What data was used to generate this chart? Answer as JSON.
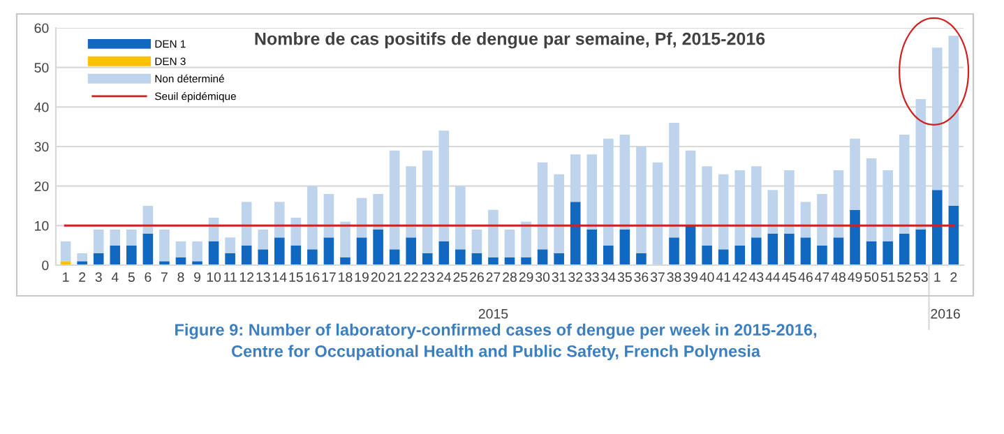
{
  "chart_data": {
    "type": "bar",
    "stacked": true,
    "title": "Nombre de cas positifs de dengue par semaine, Pf, 2015-2016",
    "categories": [
      "1",
      "2",
      "3",
      "4",
      "5",
      "6",
      "7",
      "8",
      "9",
      "10",
      "11",
      "12",
      "13",
      "14",
      "15",
      "16",
      "17",
      "18",
      "19",
      "20",
      "21",
      "22",
      "23",
      "24",
      "25",
      "26",
      "27",
      "28",
      "29",
      "30",
      "31",
      "32",
      "33",
      "34",
      "35",
      "36",
      "37",
      "38",
      "39",
      "40",
      "41",
      "42",
      "43",
      "44",
      "45",
      "46",
      "47",
      "48",
      "49",
      "50",
      "51",
      "52",
      "53",
      "1",
      "2"
    ],
    "series": [
      {
        "name": "DEN 1",
        "color": "#1068c0",
        "values": [
          0,
          1,
          3,
          5,
          5,
          8,
          1,
          2,
          1,
          6,
          3,
          5,
          4,
          7,
          5,
          4,
          7,
          2,
          7,
          9,
          4,
          7,
          3,
          6,
          4,
          3,
          2,
          2,
          2,
          4,
          3,
          16,
          9,
          5,
          9,
          3,
          0,
          7,
          10,
          5,
          4,
          5,
          7,
          8,
          8,
          7,
          5,
          7,
          14,
          6,
          6,
          8,
          9,
          19,
          15
        ]
      },
      {
        "name": "DEN 3",
        "color": "#ffc000",
        "values": [
          1,
          0,
          0,
          0,
          0,
          0,
          0,
          0,
          0,
          0,
          0,
          0,
          0,
          0,
          0,
          0,
          0,
          0,
          0,
          0,
          0,
          0,
          0,
          0,
          0,
          0,
          0,
          0,
          0,
          0,
          0,
          0,
          0,
          0,
          0,
          0,
          0,
          0,
          0,
          0,
          0,
          0,
          0,
          0,
          0,
          0,
          0,
          0,
          0,
          0,
          0,
          0,
          0,
          0,
          0
        ]
      },
      {
        "name": "Non déterminé",
        "color": "#bdd4ec",
        "values": [
          5,
          2,
          6,
          4,
          4,
          7,
          8,
          4,
          5,
          6,
          4,
          11,
          5,
          9,
          7,
          16,
          11,
          9,
          10,
          9,
          25,
          18,
          26,
          28,
          16,
          6,
          12,
          7,
          9,
          22,
          20,
          12,
          19,
          27,
          24,
          27,
          26,
          29,
          19,
          20,
          19,
          19,
          18,
          11,
          16,
          9,
          13,
          17,
          18,
          21,
          18,
          25,
          33,
          36,
          43
        ]
      }
    ],
    "ylim": [
      0,
      60
    ],
    "yticks": [
      0,
      10,
      20,
      30,
      40,
      50,
      60
    ],
    "grid": "y",
    "legend": "top left",
    "ref_lines": [
      {
        "axis": "y",
        "value": 10,
        "label": "Seuil épidémique",
        "color": "#d02020"
      }
    ],
    "annotations": [
      "2015",
      "2016",
      "Figure 9: Number of laboratory-confirmed cases of dengue per week in 2015-2016,\nCentre for Occupational Health and Public Safety, French Polynesia"
    ]
  }
}
